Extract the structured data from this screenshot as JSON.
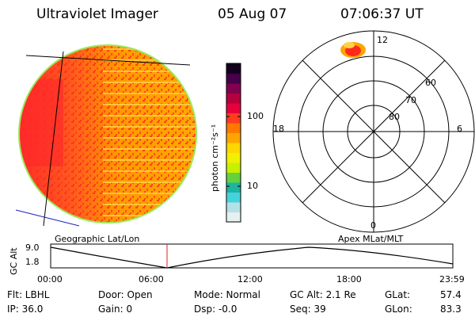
{
  "header": {
    "instrument": "Ultraviolet Imager",
    "date": "05 Aug 07",
    "time": "07:06:37 UT"
  },
  "colorbar": {
    "unit_label": "photon cm⁻²s⁻¹",
    "ticks": [
      "100",
      "10"
    ],
    "colors": [
      "#e6f0f0",
      "#b4e1e6",
      "#46d2dc",
      "#1eb4a0",
      "#64d23c",
      "#c8f000",
      "#f0f000",
      "#ffd700",
      "#ffa500",
      "#ff7800",
      "#ff3c1e",
      "#e6003c",
      "#b4003c",
      "#820050",
      "#46004a",
      "#14001e"
    ]
  },
  "polar_plot": {
    "mlt_labels": [
      "12",
      "18",
      "6",
      "0"
    ],
    "lat_labels": [
      "60",
      "70",
      "80"
    ]
  },
  "timeline": {
    "left_label": "Geographic Lat/Lon",
    "right_label": "Apex MLat/MLT",
    "axis_label": "GC Alt",
    "ytick_top": "9.0",
    "ytick_bottom": "1.8",
    "xticks": [
      "00:00",
      "06:00",
      "12:00",
      "18:00",
      "23:59"
    ],
    "marker_time": "07:06"
  },
  "footer": {
    "flt": "Flt: LBHL",
    "ip": "IP: 36.0",
    "door": "Door: Open",
    "gain": "Gain:  0",
    "mode": "Mode: Normal",
    "dsp": "Dsp:   -0.0",
    "gcalt": "GC Alt: 2.1 Re",
    "seq": "Seq: 39",
    "glat_label": "GLat:",
    "glat_value": "57.4",
    "glon_label": "GLon:",
    "glon_value": "83.3"
  }
}
